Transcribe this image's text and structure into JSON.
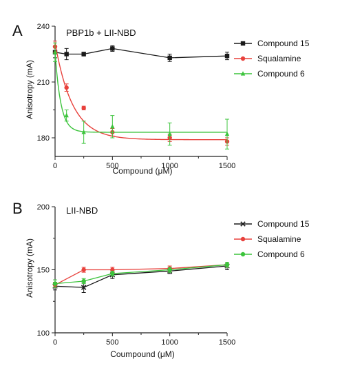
{
  "chart_data": [
    {
      "type": "scatter",
      "panel_letter": "A",
      "title": "PBP1b + LII-NBD",
      "xlabel": "Compound (μM)",
      "ylabel": "Anisotropy (mA)",
      "xlim": [
        0,
        1500
      ],
      "ylim": [
        170,
        240
      ],
      "xticks": [
        0,
        500,
        1000,
        1500
      ],
      "yticks": [
        180,
        210,
        240
      ],
      "legend_position": "right",
      "series": [
        {
          "name": "Compound 15",
          "color": "#1a1a1a",
          "marker": "square",
          "connect": "lines",
          "x": [
            0,
            100,
            250,
            500,
            1000,
            1500
          ],
          "y": [
            226,
            225,
            225,
            228,
            223,
            224
          ],
          "err": [
            3,
            3,
            1,
            1.5,
            2,
            2
          ]
        },
        {
          "name": "Squalamine",
          "color": "#e8413c",
          "marker": "circle",
          "connect": "fit",
          "fit": {
            "type": "exp_decay",
            "y0": 179,
            "A": 52,
            "k": 0.0066
          },
          "x": [
            0,
            100,
            250,
            500,
            1000,
            1500
          ],
          "y": [
            229,
            207,
            196,
            183,
            180,
            178
          ],
          "err": [
            3,
            2,
            1,
            2,
            2,
            2
          ]
        },
        {
          "name": "Compound 6",
          "color": "#3cc43c",
          "marker": "triangle",
          "connect": "fit",
          "fit": {
            "type": "exp_decay",
            "y0": 183,
            "A": 43,
            "k": 0.02
          },
          "x": [
            0,
            100,
            250,
            500,
            1000,
            1500
          ],
          "y": [
            226,
            192,
            183,
            186,
            182,
            182
          ],
          "err": [
            5,
            3,
            6,
            6,
            6,
            8
          ]
        }
      ]
    },
    {
      "type": "line",
      "panel_letter": "B",
      "title": "LII-NBD",
      "xlabel": "Coumpound (μM)",
      "ylabel": "Anisotropy (mA)",
      "xlim": [
        0,
        1500
      ],
      "ylim": [
        100,
        200
      ],
      "xticks": [
        0,
        500,
        1000,
        1500
      ],
      "yticks": [
        100,
        150,
        200
      ],
      "legend_position": "right",
      "series": [
        {
          "name": "Compound 15",
          "color": "#1a1a1a",
          "marker": "cross",
          "x": [
            0,
            250,
            500,
            1000,
            1500
          ],
          "y": [
            137,
            136,
            146,
            149,
            153
          ],
          "err": [
            3,
            4,
            3,
            2,
            3
          ]
        },
        {
          "name": "Squalamine",
          "color": "#e8413c",
          "marker": "circle",
          "x": [
            0,
            250,
            500,
            1000,
            1500
          ],
          "y": [
            138,
            150,
            150,
            151,
            154
          ],
          "err": [
            2,
            2,
            2,
            2,
            2
          ]
        },
        {
          "name": "Compound 6",
          "color": "#3cc43c",
          "marker": "circle",
          "x": [
            0,
            250,
            500,
            1000,
            1500
          ],
          "y": [
            139,
            141,
            147,
            150,
            154
          ],
          "err": [
            3,
            2,
            2,
            2,
            2
          ]
        }
      ]
    }
  ]
}
